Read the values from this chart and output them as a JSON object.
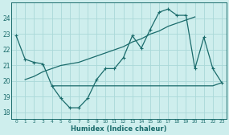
{
  "xlabel": "Humidex (Indice chaleur)",
  "bg_color": "#ceeeed",
  "line_color": "#1a6b6b",
  "grid_color": "#aad8d8",
  "xlim": [
    -0.5,
    23.5
  ],
  "ylim": [
    17.6,
    25.0
  ],
  "yticks": [
    18,
    19,
    20,
    21,
    22,
    23,
    24
  ],
  "xticks": [
    0,
    1,
    2,
    3,
    4,
    5,
    6,
    7,
    8,
    9,
    10,
    11,
    12,
    13,
    14,
    15,
    16,
    17,
    18,
    19,
    20,
    21,
    22,
    23
  ],
  "line1_x": [
    0,
    1,
    2,
    3,
    4,
    5,
    6,
    7,
    8,
    9,
    10,
    11,
    12,
    13,
    14,
    15,
    16,
    17,
    18,
    19,
    20,
    21,
    22,
    23
  ],
  "line1_y": [
    22.9,
    21.4,
    21.2,
    21.1,
    19.7,
    18.9,
    18.3,
    18.3,
    18.9,
    20.1,
    20.8,
    20.8,
    21.5,
    22.9,
    22.1,
    23.3,
    24.4,
    24.6,
    24.2,
    24.2,
    20.8,
    22.8,
    20.8,
    19.9
  ],
  "line2_x": [
    4,
    5,
    6,
    7,
    8,
    9,
    10,
    11,
    12,
    13,
    14,
    15,
    16,
    17,
    18,
    19,
    20,
    22,
    23
  ],
  "line2_y": [
    19.7,
    19.7,
    19.7,
    19.7,
    19.7,
    19.7,
    19.7,
    19.7,
    19.7,
    19.7,
    19.7,
    19.7,
    19.7,
    19.7,
    19.7,
    19.7,
    19.7,
    19.7,
    19.9
  ],
  "line3_x": [
    1,
    2,
    3,
    4,
    5,
    6,
    7,
    8,
    9,
    10,
    11,
    12,
    13,
    14,
    15,
    16,
    17,
    18,
    19,
    20
  ],
  "line3_y": [
    20.1,
    20.3,
    20.6,
    20.8,
    21.0,
    21.1,
    21.2,
    21.4,
    21.6,
    21.8,
    22.0,
    22.2,
    22.5,
    22.7,
    23.0,
    23.2,
    23.5,
    23.7,
    23.9,
    24.1
  ]
}
